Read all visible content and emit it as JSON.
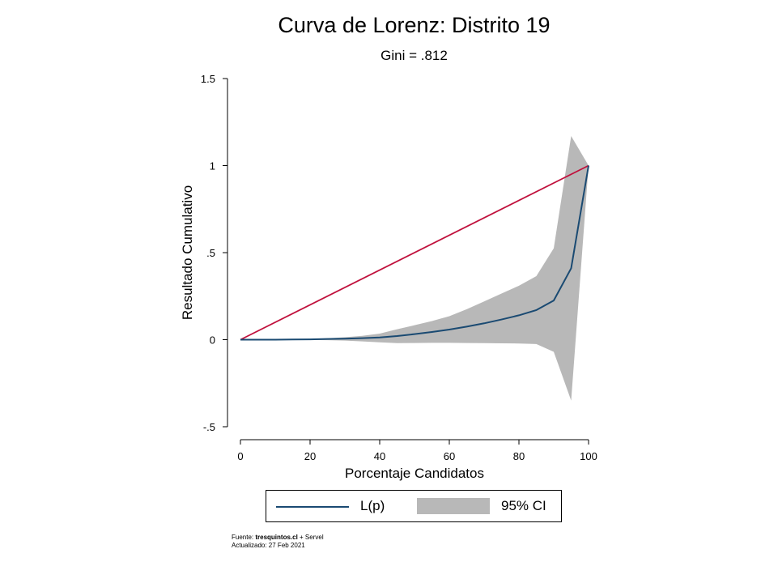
{
  "title": "Curva de Lorenz: Distrito 19",
  "subtitle": "Gini = .812",
  "colors": {
    "lorenz_line": "#1a4a72",
    "equality_line": "#c0103c",
    "ci_fill": "#b8b8b8",
    "axis": "#000000"
  },
  "legend": {
    "lorenz_label": "L(p)",
    "ci_label": "95% CI",
    "placement": "bottom"
  },
  "footer": {
    "source_prefix": "Fuente: ",
    "source_site": "tresquintos.cl",
    "source_suffix": " + Servel",
    "updated": "Actualizado: 27 Feb 2021"
  },
  "chart_data": {
    "type": "line",
    "title": "Curva de Lorenz: Distrito 19",
    "subtitle": "Gini = .812",
    "xlabel": "Porcentaje Candidatos",
    "ylabel": "Resultado Cumulativo",
    "xlim": [
      0,
      100
    ],
    "ylim": [
      -0.5,
      1.5
    ],
    "x_ticks": [
      0,
      20,
      40,
      60,
      80,
      100
    ],
    "x_tick_labels": [
      "0",
      "20",
      "40",
      "60",
      "80",
      "100"
    ],
    "y_ticks": [
      -0.5,
      0,
      0.5,
      1,
      1.5
    ],
    "y_tick_labels": [
      "-.5",
      "0",
      ".5",
      "1",
      "1.5"
    ],
    "grid": false,
    "series": [
      {
        "name": "L(p)",
        "x": [
          0,
          5,
          10,
          15,
          20,
          25,
          30,
          35,
          40,
          45,
          50,
          55,
          60,
          65,
          70,
          75,
          80,
          85,
          90,
          95,
          100
        ],
        "y": [
          0,
          0,
          0,
          0.001,
          0.002,
          0.004,
          0.006,
          0.009,
          0.013,
          0.021,
          0.032,
          0.044,
          0.058,
          0.075,
          0.094,
          0.116,
          0.14,
          0.17,
          0.225,
          0.41,
          1.0
        ]
      }
    ],
    "equality_line": {
      "x": [
        0,
        100
      ],
      "y": [
        0,
        1
      ]
    },
    "confidence_band": {
      "name": "95% CI",
      "x": [
        0,
        5,
        10,
        15,
        20,
        25,
        30,
        35,
        40,
        45,
        50,
        55,
        60,
        65,
        70,
        75,
        80,
        85,
        90,
        95,
        100
      ],
      "lower": [
        0,
        0,
        0,
        -0.001,
        -0.002,
        -0.003,
        -0.005,
        -0.01,
        -0.015,
        -0.02,
        -0.019,
        -0.018,
        -0.018,
        -0.019,
        -0.02,
        -0.021,
        -0.022,
        -0.025,
        -0.07,
        -0.35,
        1.0
      ],
      "upper": [
        0,
        0,
        0,
        0.002,
        0.004,
        0.008,
        0.014,
        0.022,
        0.035,
        0.06,
        0.083,
        0.107,
        0.135,
        0.175,
        0.22,
        0.265,
        0.31,
        0.365,
        0.525,
        1.17,
        1.0
      ]
    }
  }
}
